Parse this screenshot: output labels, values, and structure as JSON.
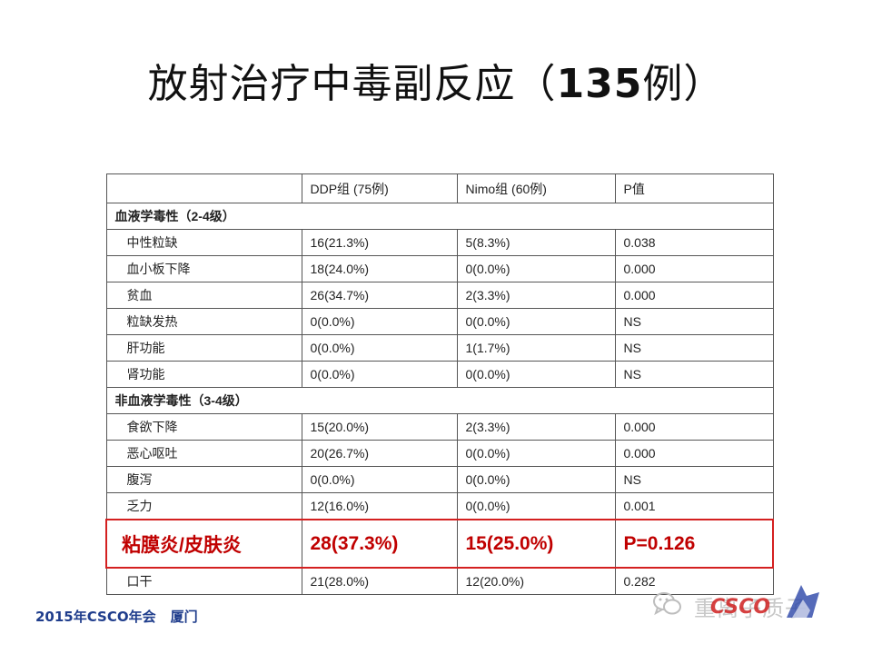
{
  "slide": {
    "title_text": "放射治疗中毒副反应（",
    "title_count": "135",
    "title_unit": "例）"
  },
  "table": {
    "headers": [
      "",
      "DDP组 (75例)",
      "Nimo组 (60例)",
      "P值"
    ],
    "section_hematologic": "血液学毒性（2-4级）",
    "hematologic_rows": [
      {
        "label": "中性粒缺",
        "ddp": "16(21.3%)",
        "nimo": "5(8.3%)",
        "p": "0.038"
      },
      {
        "label": "血小板下降",
        "ddp": "18(24.0%)",
        "nimo": "0(0.0%)",
        "p": "0.000"
      },
      {
        "label": "贫血",
        "ddp": "26(34.7%)",
        "nimo": "2(3.3%)",
        "p": "0.000"
      },
      {
        "label": "粒缺发热",
        "ddp": "0(0.0%)",
        "nimo": "0(0.0%)",
        "p": "NS"
      },
      {
        "label": "肝功能",
        "ddp": "0(0.0%)",
        "nimo": "1(1.7%)",
        "p": "NS"
      },
      {
        "label": "肾功能",
        "ddp": "0(0.0%)",
        "nimo": "0(0.0%)",
        "p": "NS"
      }
    ],
    "section_nonhematologic": "非血液学毒性（3-4级）",
    "nonhematologic_rows": [
      {
        "label": "食欲下降",
        "ddp": "15(20.0%)",
        "nimo": "2(3.3%)",
        "p": "0.000"
      },
      {
        "label": "恶心呕吐",
        "ddp": "20(26.7%)",
        "nimo": "0(0.0%)",
        "p": "0.000"
      },
      {
        "label": "腹泻",
        "ddp": "0(0.0%)",
        "nimo": "0(0.0%)",
        "p": "NS"
      },
      {
        "label": "乏力",
        "ddp": "12(16.0%)",
        "nimo": "0(0.0%)",
        "p": "0.001"
      }
    ],
    "highlight_row": {
      "label": "粘膜炎/皮肤炎",
      "ddp": "28(37.3%)",
      "nimo": "15(25.0%)",
      "p": "P=0.126"
    },
    "last_row": {
      "label": "口干",
      "ddp": "21(28.0%)",
      "nimo": "12(20.0%)",
      "p": "0.282"
    }
  },
  "footer": {
    "event": "2015年CSCO年会",
    "city": "厦门"
  },
  "watermark": {
    "icon": "wechat-icon",
    "text": "重离子质子",
    "logo_text": "CSCO"
  },
  "colors": {
    "highlight_red": "#c00000",
    "footer_blue": "#1f3d8c"
  }
}
